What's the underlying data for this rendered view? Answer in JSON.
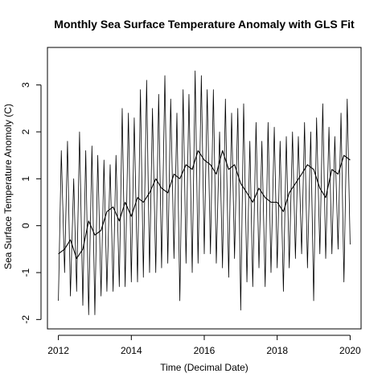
{
  "chart_data": {
    "type": "line",
    "title": "Monthly Sea Surface Temperature Anomaly with GLS Fit",
    "xlabel": "Time (Decimal Date)",
    "ylabel": "Sea Surface Temperature Anomoly (C)",
    "xlim": [
      2011.7,
      2020.3
    ],
    "ylim": [
      -2.2,
      3.8
    ],
    "xticks": [
      2012,
      2014,
      2016,
      2018,
      2020
    ],
    "yticks": [
      -2,
      -1,
      0,
      1,
      2,
      3
    ],
    "grid": false,
    "legend": "none",
    "series": [
      {
        "x": [
          2012.0,
          2012.08,
          2012.17,
          2012.25,
          2012.33,
          2012.42,
          2012.5,
          2012.58,
          2012.67,
          2012.75,
          2012.83,
          2012.92,
          2013.0,
          2013.08,
          2013.17,
          2013.25,
          2013.33,
          2013.42,
          2013.5,
          2013.58,
          2013.67,
          2013.75,
          2013.83,
          2013.92,
          2014.0,
          2014.08,
          2014.17,
          2014.25,
          2014.33,
          2014.42,
          2014.5,
          2014.58,
          2014.67,
          2014.75,
          2014.83,
          2014.92,
          2015.0,
          2015.08,
          2015.17,
          2015.25,
          2015.33,
          2015.42,
          2015.5,
          2015.58,
          2015.67,
          2015.75,
          2015.83,
          2015.92,
          2016.0,
          2016.08,
          2016.17,
          2016.25,
          2016.33,
          2016.42,
          2016.5,
          2016.58,
          2016.67,
          2016.75,
          2016.83,
          2016.92,
          2017.0,
          2017.08,
          2017.17,
          2017.25,
          2017.33,
          2017.42,
          2017.5,
          2017.58,
          2017.67,
          2017.75,
          2017.83,
          2017.92,
          2018.0,
          2018.08,
          2018.17,
          2018.25,
          2018.33,
          2018.42,
          2018.5,
          2018.58,
          2018.67,
          2018.75,
          2018.83,
          2018.92,
          2019.0,
          2019.08,
          2019.17,
          2019.25,
          2019.33,
          2019.42,
          2019.5,
          2019.58,
          2019.67,
          2019.75,
          2019.83,
          2019.92,
          2020.0
        ],
        "values": [
          -1.6,
          1.6,
          -1.0,
          1.8,
          -1.5,
          1.0,
          -1.4,
          2.0,
          -1.7,
          1.6,
          -1.9,
          1.7,
          -1.9,
          1.5,
          -1.5,
          1.4,
          -1.4,
          1.3,
          -1.4,
          1.5,
          -1.3,
          2.5,
          -1.3,
          2.4,
          -1.2,
          2.3,
          -1.2,
          2.9,
          -1.1,
          3.1,
          -1.0,
          2.5,
          -1.0,
          2.8,
          -0.9,
          3.2,
          -0.8,
          2.7,
          -0.7,
          2.4,
          -1.6,
          2.9,
          -0.8,
          2.8,
          -1.0,
          3.3,
          -0.8,
          3.2,
          -0.6,
          2.9,
          -0.6,
          2.9,
          -0.8,
          2.0,
          -0.9,
          2.7,
          -1.1,
          2.4,
          -0.7,
          2.5,
          -1.8,
          2.6,
          -1.2,
          1.8,
          -1.3,
          2.2,
          -0.9,
          1.8,
          -1.3,
          2.2,
          -1.0,
          2.1,
          -0.9,
          1.8,
          -1.4,
          1.9,
          -0.9,
          2.0,
          -0.7,
          1.9,
          -0.6,
          2.2,
          -0.9,
          2.0,
          -1.6,
          2.3,
          -0.6,
          2.6,
          -0.7,
          2.1,
          -0.6,
          1.9,
          -0.5,
          2.4,
          -1.2,
          2.7,
          -0.4
        ]
      },
      {
        "name": "GLS Fit",
        "x": [
          2012.0,
          2012.17,
          2012.33,
          2012.5,
          2012.67,
          2012.83,
          2013.0,
          2013.17,
          2013.33,
          2013.5,
          2013.67,
          2013.83,
          2014.0,
          2014.17,
          2014.33,
          2014.5,
          2014.67,
          2014.83,
          2015.0,
          2015.17,
          2015.33,
          2015.5,
          2015.67,
          2015.83,
          2016.0,
          2016.17,
          2016.33,
          2016.5,
          2016.67,
          2016.83,
          2017.0,
          2017.17,
          2017.33,
          2017.5,
          2017.67,
          2017.83,
          2018.0,
          2018.17,
          2018.33,
          2018.5,
          2018.67,
          2018.83,
          2019.0,
          2019.17,
          2019.33,
          2019.5,
          2019.67,
          2019.83,
          2020.0
        ],
        "values": [
          -0.6,
          -0.5,
          -0.3,
          -0.7,
          -0.5,
          0.1,
          -0.2,
          -0.1,
          0.3,
          0.4,
          0.1,
          0.5,
          0.2,
          0.6,
          0.5,
          0.7,
          1.0,
          0.8,
          0.7,
          1.1,
          1.0,
          1.3,
          1.2,
          1.6,
          1.4,
          1.3,
          1.1,
          1.6,
          1.2,
          1.3,
          0.9,
          0.7,
          0.5,
          0.8,
          0.6,
          0.5,
          0.5,
          0.3,
          0.7,
          0.9,
          1.1,
          1.3,
          1.2,
          0.8,
          0.6,
          1.2,
          1.1,
          1.5,
          1.4
        ]
      }
    ]
  }
}
